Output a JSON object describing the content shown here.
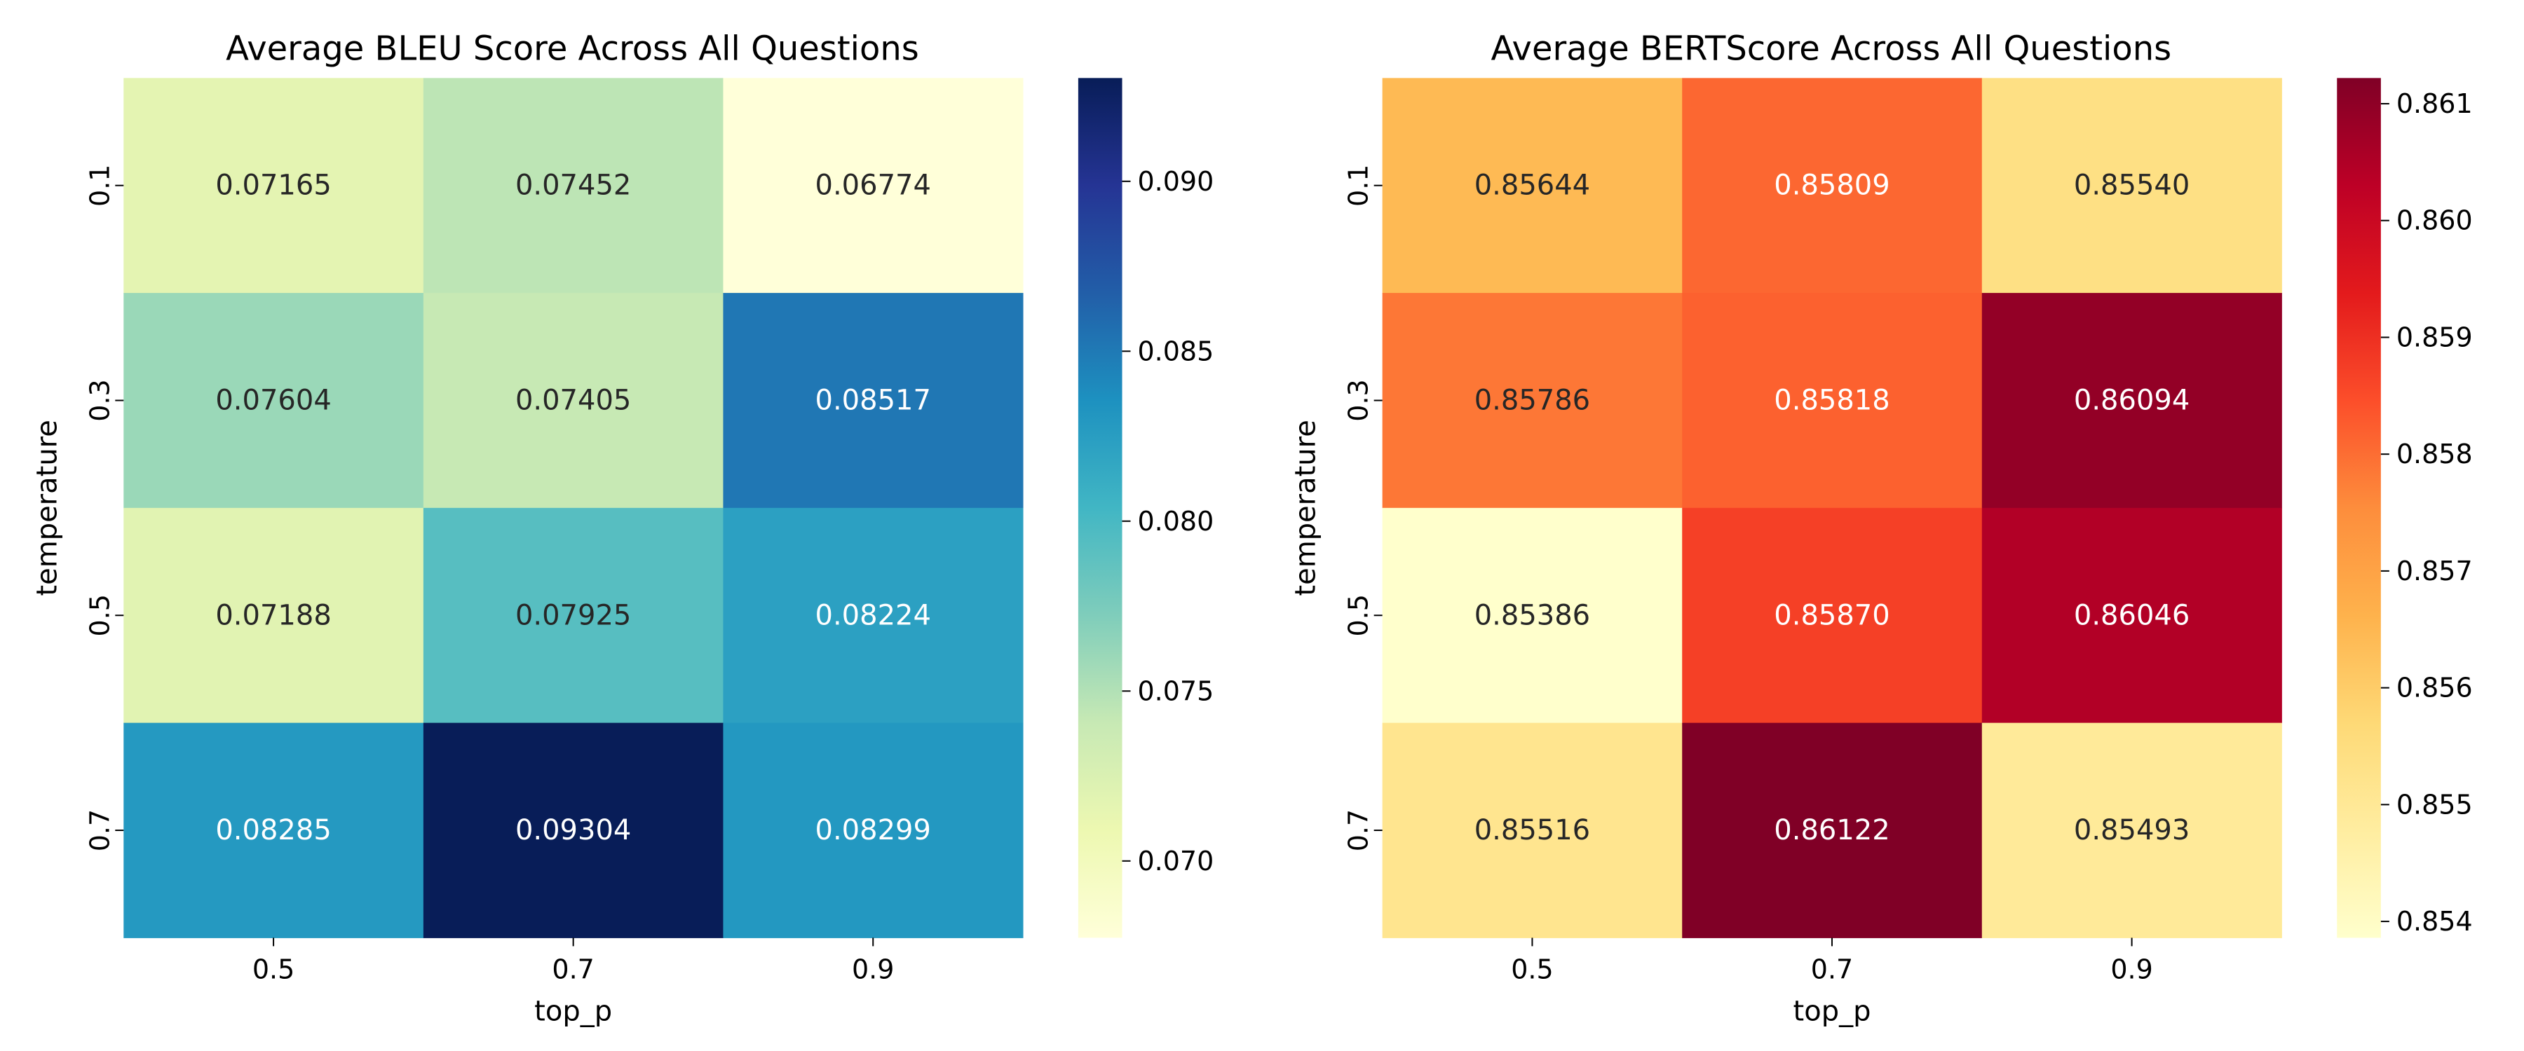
{
  "chart_data": [
    {
      "type": "heatmap",
      "title": "Average BLEU Score Across All Questions",
      "xlabel": "top_p",
      "ylabel": "temperature",
      "x_categories": [
        "0.5",
        "0.7",
        "0.9"
      ],
      "y_categories": [
        "0.1",
        "0.3",
        "0.5",
        "0.7"
      ],
      "values": [
        [
          0.07165,
          0.07452,
          0.06774
        ],
        [
          0.07604,
          0.07405,
          0.08517
        ],
        [
          0.07188,
          0.07925,
          0.08224
        ],
        [
          0.08285,
          0.09304,
          0.08299
        ]
      ],
      "value_labels": [
        [
          "0.07165",
          "0.07452",
          "0.06774"
        ],
        [
          "0.07604",
          "0.07405",
          "0.08517"
        ],
        [
          "0.07188",
          "0.07925",
          "0.08224"
        ],
        [
          "0.08285",
          "0.09304",
          "0.08299"
        ]
      ],
      "colormap": "YlGnBu",
      "colorbar_range": [
        0.06774,
        0.09304
      ],
      "colorbar_ticks": [
        "0.070",
        "0.075",
        "0.080",
        "0.085",
        "0.090"
      ]
    },
    {
      "type": "heatmap",
      "title": "Average BERTScore Across All Questions",
      "xlabel": "top_p",
      "ylabel": "temperature",
      "x_categories": [
        "0.5",
        "0.7",
        "0.9"
      ],
      "y_categories": [
        "0.1",
        "0.3",
        "0.5",
        "0.7"
      ],
      "values": [
        [
          0.85644,
          0.85809,
          0.8554
        ],
        [
          0.85786,
          0.85818,
          0.86094
        ],
        [
          0.85386,
          0.8587,
          0.86046
        ],
        [
          0.85516,
          0.86122,
          0.85493
        ]
      ],
      "value_labels": [
        [
          "0.85644",
          "0.85809",
          "0.85540"
        ],
        [
          "0.85786",
          "0.85818",
          "0.86094"
        ],
        [
          "0.85386",
          "0.85870",
          "0.86046"
        ],
        [
          "0.85516",
          "0.86122",
          "0.85493"
        ]
      ],
      "colormap": "YlOrRd",
      "colorbar_range": [
        0.85386,
        0.86122
      ],
      "colorbar_ticks": [
        "0.854",
        "0.855",
        "0.856",
        "0.857",
        "0.858",
        "0.859",
        "0.860",
        "0.861"
      ]
    }
  ]
}
